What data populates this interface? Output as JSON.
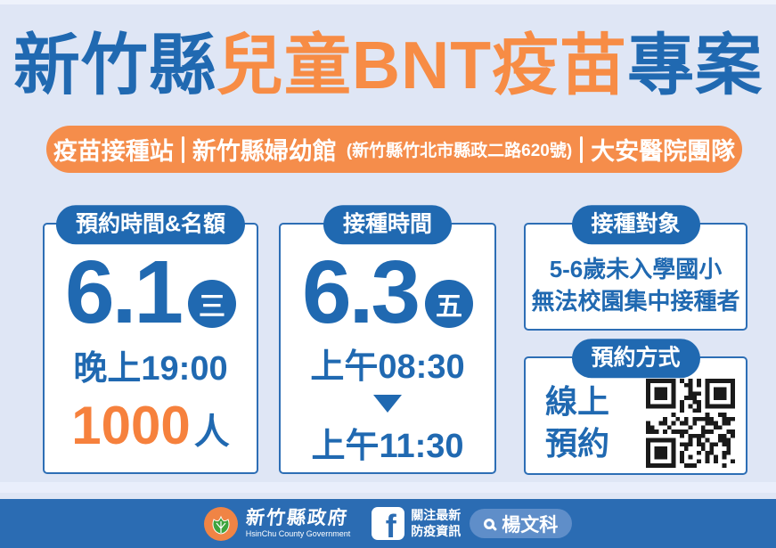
{
  "title": {
    "prefix": "新竹縣",
    "highlight": "兒童BNT疫苗",
    "suffix": "專案"
  },
  "banner": {
    "station": "疫苗接種站",
    "venue": "新竹縣婦幼館",
    "address": "(新竹縣竹北市縣政二路620號)",
    "team": "大安醫院團隊"
  },
  "cards": {
    "reservation": {
      "header": "預約時間&名額",
      "date": "6.1",
      "weekday": "三",
      "time": "晚上19:00",
      "quota": "1000",
      "quota_unit": "人"
    },
    "schedule": {
      "header": "接種時間",
      "date": "6.3",
      "weekday": "五",
      "start": "上午08:30",
      "end": "上午11:30"
    },
    "target": {
      "header": "接種對象",
      "line1": "5-6歲未入學國小",
      "line2": "無法校園集中接種者"
    },
    "method": {
      "header": "預約方式",
      "line1": "線上",
      "line2": "預約"
    }
  },
  "footer": {
    "org_zh": "新竹縣政府",
    "org_en": "HsinChu County Government",
    "fb_line1": "關注最新",
    "fb_line2": "防疫資訊",
    "search_name": "楊文科"
  },
  "colors": {
    "background": "#dfe6f5",
    "primary_blue": "#2069b1",
    "accent_orange": "#f58d4b",
    "title_orange": "#f78c45",
    "quota_orange": "#f6813d",
    "footer_blue": "#2b6cb3",
    "search_pill_blue": "#5f8ec9",
    "card_border_blue": "#2d6eb5",
    "logo_orange": "#f08445",
    "logo_leaf_green": "#3da43d"
  }
}
